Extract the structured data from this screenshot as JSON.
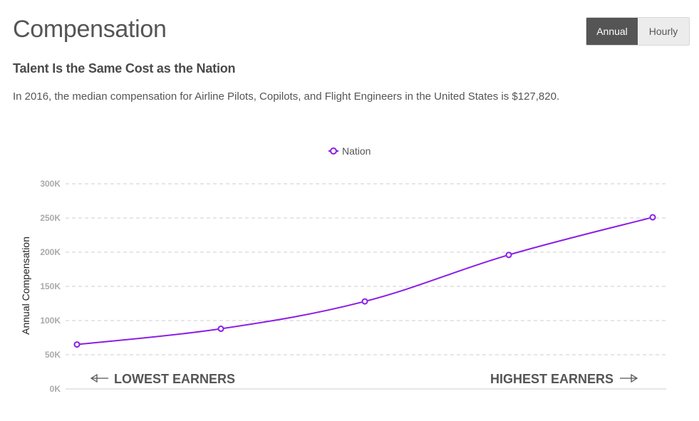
{
  "header": {
    "title": "Compensation",
    "toggle": {
      "annual_label": "Annual",
      "hourly_label": "Hourly",
      "selected": "Annual"
    }
  },
  "section": {
    "subtitle": "Talent Is the Same Cost as the Nation",
    "description": "In 2016, the median compensation for Airline Pilots, Copilots, and Flight Engineers in the United States is $127,820."
  },
  "colors": {
    "series": "#8a1ee6",
    "grid": "#cccccc",
    "active_toggle": "#555555"
  },
  "chart_data": {
    "type": "line",
    "ylabel": "Annual Compensation",
    "ylim": [
      0,
      300000
    ],
    "yticks": [
      0,
      50000,
      100000,
      150000,
      200000,
      250000,
      300000
    ],
    "ytick_labels": [
      "0K",
      "50K",
      "100K",
      "150K",
      "200K",
      "250K",
      "300K"
    ],
    "grid": true,
    "legend": "top-center",
    "series": [
      {
        "name": "Nation",
        "values": [
          65000,
          88000,
          128000,
          196000,
          251000
        ]
      }
    ],
    "annotations": {
      "left": "LOWEST EARNERS",
      "right": "HIGHEST EARNERS"
    }
  }
}
